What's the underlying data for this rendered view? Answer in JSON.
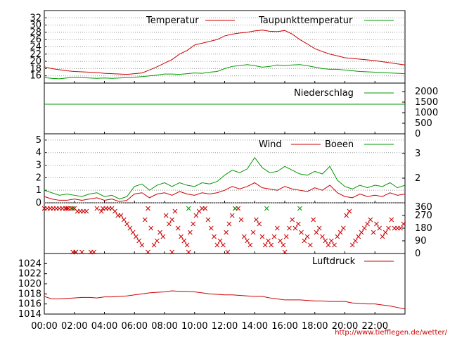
{
  "chart_data": [
    {
      "type": "line",
      "series": [
        {
          "name": "Temperatur",
          "color": "#cc0000",
          "x": [
            0,
            0.5,
            1,
            1.5,
            2,
            2.5,
            3,
            3.5,
            4,
            4.5,
            5,
            5.5,
            6,
            6.5,
            7,
            7.5,
            8,
            8.5,
            9,
            9.5,
            10,
            10.5,
            11,
            11.5,
            12,
            12.5,
            13,
            13.5,
            14,
            14.5,
            15,
            15.5,
            16,
            16.5,
            17,
            17.5,
            18,
            18.5,
            19,
            19.5,
            20,
            20.5,
            21,
            21.5,
            22,
            22.5,
            23,
            23.5,
            24
          ],
          "y": [
            18.5,
            18,
            17.7,
            17.4,
            17.2,
            17.1,
            17,
            16.9,
            16.7,
            16.6,
            16.5,
            16.4,
            16.6,
            16.8,
            17.6,
            18.5,
            19.5,
            20.5,
            22,
            23,
            24.5,
            25,
            25.5,
            26,
            27,
            27.5,
            27.8,
            28,
            28.4,
            28.6,
            28.3,
            28.2,
            28.5,
            27.5,
            26,
            24.8,
            23.5,
            22.7,
            22,
            21.5,
            21,
            20.8,
            20.6,
            20.4,
            20.2,
            19.9,
            19.6,
            19.3,
            19
          ]
        },
        {
          "name": "Taupunkttemperatur",
          "color": "#009900",
          "x": [
            0,
            0.5,
            1,
            1.5,
            2,
            2.5,
            3,
            3.5,
            4,
            4.5,
            5,
            5.5,
            6,
            6.5,
            7,
            7.5,
            8,
            8.5,
            9,
            9.5,
            10,
            10.5,
            11,
            11.5,
            12,
            12.5,
            13,
            13.5,
            14,
            14.5,
            15,
            15.5,
            16,
            16.5,
            17,
            17.5,
            18,
            18.5,
            19,
            19.5,
            20,
            20.5,
            21,
            21.5,
            22,
            22.5,
            23,
            23.5,
            24
          ],
          "y": [
            15.5,
            15.3,
            15.2,
            15.4,
            15.6,
            15.5,
            15.4,
            15.3,
            15.4,
            15.3,
            15.4,
            15.5,
            15.6,
            15.8,
            16,
            16.2,
            16.5,
            16.5,
            16.4,
            16.6,
            16.8,
            16.7,
            17,
            17.2,
            18,
            18.6,
            18.8,
            19.1,
            18.8,
            18.4,
            18.6,
            19,
            18.8,
            19,
            19.1,
            18.8,
            18.4,
            18,
            17.8,
            17.8,
            17.6,
            17.4,
            17.2,
            17.1,
            17,
            16.9,
            16.8,
            16.7,
            16.6
          ]
        }
      ],
      "xlim": [
        0,
        24
      ],
      "ylim": [
        14,
        34
      ],
      "yticks": [
        "16",
        "18",
        "20",
        "22",
        "24",
        "26",
        "28",
        "30",
        "32"
      ],
      "grid": true,
      "legend": "top"
    },
    {
      "type": "line",
      "series": [
        {
          "name": "Niederschlag",
          "color": "#009900",
          "x": [
            0,
            24
          ],
          "y": [
            1400,
            1400
          ]
        }
      ],
      "xlim": [
        0,
        24
      ],
      "ylim": [
        0,
        2400
      ],
      "yticks_right": [
        "0",
        "500",
        "1000",
        "1500",
        "2000"
      ],
      "legend": "top-right"
    },
    {
      "type": "line",
      "series": [
        {
          "name": "Wind",
          "color": "#cc0000",
          "x": [
            0,
            0.5,
            1,
            1.5,
            2,
            2.5,
            3,
            3.5,
            4,
            4.5,
            5,
            5.5,
            6,
            6.5,
            7,
            7.5,
            8,
            8.5,
            9,
            9.5,
            10,
            10.5,
            11,
            11.5,
            12,
            12.5,
            13,
            13.5,
            14,
            14.5,
            15,
            15.5,
            16,
            16.5,
            17,
            17.5,
            18,
            18.5,
            19,
            19.5,
            20,
            20.5,
            21,
            21.5,
            22,
            22.5,
            23,
            23.5,
            24
          ],
          "y": [
            0.5,
            0.3,
            0.2,
            0.2,
            0.3,
            0.2,
            0.3,
            0.4,
            0.2,
            0.3,
            0.1,
            0.2,
            0.7,
            0.8,
            0.4,
            0.7,
            0.8,
            0.6,
            0.9,
            0.7,
            0.6,
            0.8,
            0.7,
            0.8,
            1.0,
            1.3,
            1.1,
            1.3,
            1.6,
            1.2,
            1.1,
            1.0,
            1.3,
            1.1,
            1.0,
            0.9,
            1.2,
            1.0,
            1.4,
            0.8,
            0.5,
            0.4,
            0.7,
            0.5,
            0.6,
            0.5,
            0.8,
            0.6,
            0.7
          ]
        },
        {
          "name": "Boeen",
          "color": "#009900",
          "x": [
            0,
            0.5,
            1,
            1.5,
            2,
            2.5,
            3,
            3.5,
            4,
            4.5,
            5,
            5.5,
            6,
            6.5,
            7,
            7.5,
            8,
            8.5,
            9,
            9.5,
            10,
            10.5,
            11,
            11.5,
            12,
            12.5,
            13,
            13.5,
            14,
            14.5,
            15,
            15.5,
            16,
            16.5,
            17,
            17.5,
            18,
            18.5,
            19,
            19.5,
            20,
            20.5,
            21,
            21.5,
            22,
            22.5,
            23,
            23.5,
            24
          ],
          "y": [
            1.0,
            0.8,
            0.6,
            0.7,
            0.6,
            0.5,
            0.7,
            0.8,
            0.5,
            0.6,
            0.3,
            0.5,
            1.3,
            1.5,
            1.0,
            1.4,
            1.6,
            1.3,
            1.6,
            1.4,
            1.3,
            1.6,
            1.5,
            1.7,
            2.2,
            2.6,
            2.4,
            2.7,
            3.6,
            2.8,
            2.4,
            2.5,
            2.9,
            2.6,
            2.3,
            2.2,
            2.5,
            2.3,
            2.9,
            1.8,
            1.3,
            1.1,
            1.4,
            1.2,
            1.4,
            1.3,
            1.6,
            1.2,
            1.4
          ]
        }
      ],
      "xlim": [
        0,
        24
      ],
      "ylim": [
        0,
        5.5
      ],
      "yticks": [
        "0",
        "1",
        "2",
        "3",
        "4",
        "5"
      ],
      "yticks_right": [
        "2",
        "3"
      ],
      "grid": true,
      "legend": "top-right"
    },
    {
      "type": "scatter",
      "series": [
        {
          "color": "#cc0000",
          "marker": "x",
          "x": [
            0,
            0.2,
            0.4,
            0.6,
            0.8,
            1.0,
            1.2,
            1.4,
            1.6,
            1.5,
            1.8,
            2.0,
            2.2,
            2.4,
            2.6,
            2.8,
            2.1,
            2.5,
            3.5,
            3.8,
            3.9,
            4.1,
            4.3,
            4.5,
            4.7,
            4.9,
            5.1,
            5.3,
            5.5,
            5.7,
            5.9,
            6.1,
            6.3,
            6.5,
            6.7,
            6.9,
            7.1,
            7.3,
            7.5,
            7.7,
            7.9,
            8.1,
            8.3,
            8.5,
            8.7,
            8.9,
            9.1,
            9.3,
            9.5,
            9.7,
            9.9,
            10.1,
            10.3,
            10.5,
            10.7,
            10.9,
            11.1,
            11.3,
            11.5,
            11.7,
            11.9,
            12.1,
            12.3,
            12.5,
            12.7,
            12.9,
            13.1,
            13.3,
            13.5,
            13.7,
            13.9,
            14.1,
            14.3,
            14.5,
            14.7,
            14.9,
            15.1,
            15.3,
            15.5,
            15.7,
            15.9,
            16.1,
            16.3,
            16.5,
            16.7,
            16.9,
            17.1,
            17.3,
            17.5,
            17.7,
            17.9,
            18.1,
            18.3,
            18.5,
            18.7,
            18.9,
            19.1,
            19.3,
            19.5,
            19.7,
            19.9,
            20.1,
            20.3,
            20.5,
            20.7,
            20.9,
            21.1,
            21.3,
            21.5,
            21.7,
            21.9,
            22.1,
            22.3,
            22.5,
            22.7,
            22.9,
            23.1,
            23.3,
            23.5,
            23.7,
            23.9,
            1.9,
            2.1,
            3.1,
            3.3,
            6.9,
            8.5,
            9.6,
            12.2,
            16.0
          ],
          "y": [
            360,
            360,
            360,
            360,
            360,
            360,
            360,
            360,
            360,
            330,
            360,
            360,
            300,
            300,
            300,
            300,
            0,
            0,
            330,
            300,
            360,
            360,
            360,
            330,
            300,
            270,
            270,
            240,
            210,
            180,
            150,
            120,
            90,
            60,
            240,
            360,
            180,
            60,
            90,
            150,
            120,
            270,
            210,
            240,
            300,
            180,
            120,
            90,
            60,
            150,
            210,
            270,
            300,
            330,
            360,
            240,
            180,
            120,
            60,
            90,
            60,
            150,
            210,
            270,
            330,
            360,
            240,
            120,
            90,
            60,
            150,
            240,
            210,
            120,
            60,
            90,
            60,
            120,
            180,
            90,
            60,
            120,
            180,
            240,
            180,
            210,
            150,
            90,
            120,
            60,
            240,
            150,
            180,
            120,
            90,
            60,
            90,
            60,
            120,
            150,
            180,
            270,
            300,
            60,
            90,
            120,
            150,
            180,
            210,
            240,
            150,
            210,
            180,
            120,
            150,
            180,
            240,
            180,
            180,
            180,
            210,
            0,
            0,
            0,
            0,
            0,
            0,
            0,
            0,
            0
          ]
        },
        {
          "color": "#009900",
          "marker": "x",
          "x": [
            1.9,
            9.6,
            12.7,
            14.8,
            17.0
          ],
          "y": [
            360,
            360,
            360,
            360,
            360
          ]
        }
      ],
      "xlim": [
        0,
        24
      ],
      "ylim": [
        0,
        360
      ],
      "yticks_right": [
        "0",
        "90",
        "180",
        "270",
        "360"
      ]
    },
    {
      "type": "line",
      "series": [
        {
          "name": "Luftdruck",
          "color": "#cc0000",
          "x": [
            0,
            0.5,
            1,
            1.5,
            2,
            2.5,
            3,
            3.5,
            4,
            4.5,
            5,
            5.5,
            6,
            6.5,
            7,
            7.5,
            8,
            8.5,
            9,
            9.5,
            10,
            10.5,
            11,
            11.5,
            12,
            12.5,
            13,
            13.5,
            14,
            14.5,
            15,
            15.5,
            16,
            16.5,
            17,
            17.5,
            18,
            18.5,
            19,
            19.5,
            20,
            20.5,
            21,
            21.5,
            22,
            22.5,
            23,
            23.5,
            24
          ],
          "y": [
            1017.5,
            1017,
            1017,
            1017.1,
            1017.2,
            1017.3,
            1017.3,
            1017.2,
            1017.4,
            1017.4,
            1017.5,
            1017.6,
            1017.8,
            1018,
            1018.2,
            1018.3,
            1018.4,
            1018.6,
            1018.5,
            1018.5,
            1018.4,
            1018.2,
            1018,
            1017.9,
            1017.8,
            1017.8,
            1017.7,
            1017.6,
            1017.5,
            1017.5,
            1017.2,
            1017,
            1016.8,
            1016.8,
            1016.8,
            1016.7,
            1016.6,
            1016.6,
            1016.5,
            1016.5,
            1016.5,
            1016.2,
            1016.1,
            1016,
            1016,
            1015.8,
            1015.6,
            1015.3,
            1015
          ]
        }
      ],
      "xlim": [
        0,
        24
      ],
      "ylim": [
        1014,
        1026
      ],
      "yticks": [
        "1014",
        "1016",
        "1018",
        "1020",
        "1022",
        "1024"
      ],
      "legend": "top-right"
    }
  ],
  "x_tick_labels": [
    "00:00",
    "02:00",
    "04:00",
    "06:00",
    "08:00",
    "10:00",
    "12:00",
    "14:00",
    "16:00",
    "18:00",
    "20:00",
    "22:00"
  ],
  "footer_url": "http://www.tiefflegen.de/wetter/"
}
